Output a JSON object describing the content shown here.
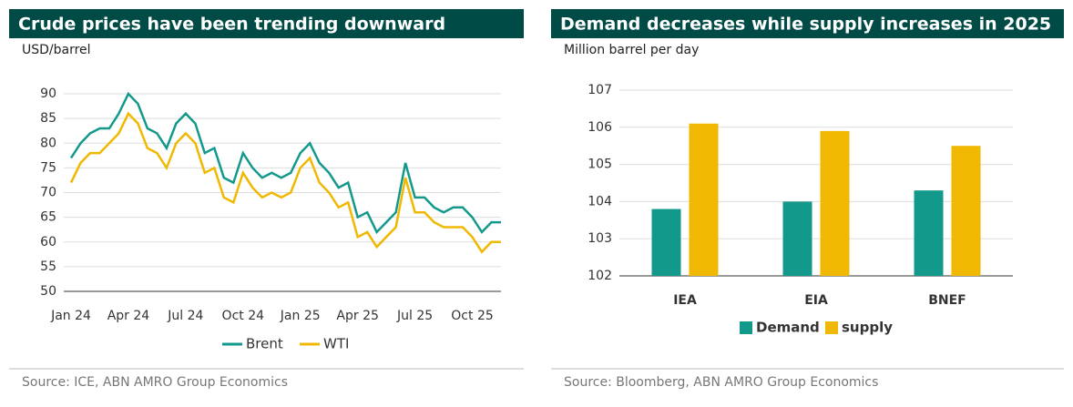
{
  "chart_data": [
    {
      "type": "line",
      "title": "Crude prices have been trending downward",
      "y_label": "USD/barrel",
      "source": "Source: ICE, ABN AMRO Group Economics",
      "categories": [
        "Jan 24",
        null,
        null,
        null,
        null,
        null,
        "Apr 24",
        null,
        null,
        null,
        null,
        null,
        "Jul 24",
        null,
        null,
        null,
        null,
        null,
        "Oct 24",
        null,
        null,
        null,
        null,
        null,
        "Jan 25",
        null,
        null,
        null,
        null,
        null,
        "Apr 25",
        null,
        null,
        null,
        null,
        null,
        "Jul 25",
        null,
        null,
        null,
        null,
        null,
        "Oct 25",
        null,
        null,
        null
      ],
      "series": [
        {
          "name": "Brent",
          "color": "#13998c",
          "values": [
            77,
            80,
            82,
            83,
            83,
            86,
            90,
            88,
            83,
            82,
            79,
            84,
            86,
            84,
            78,
            79,
            73,
            72,
            78,
            75,
            73,
            74,
            73,
            74,
            78,
            80,
            76,
            74,
            71,
            72,
            65,
            66,
            62,
            64,
            66,
            76,
            69,
            69,
            67,
            66,
            67,
            67,
            65,
            62,
            64,
            64
          ]
        },
        {
          "name": "WTI",
          "color": "#f0b800",
          "values": [
            72,
            76,
            78,
            78,
            80,
            82,
            86,
            84,
            79,
            78,
            75,
            80,
            82,
            80,
            74,
            75,
            69,
            68,
            74,
            71,
            69,
            70,
            69,
            70,
            75,
            77,
            72,
            70,
            67,
            68,
            61,
            62,
            59,
            61,
            63,
            73,
            66,
            66,
            64,
            63,
            63,
            63,
            61,
            58,
            60,
            60
          ]
        }
      ],
      "ylim": [
        50,
        90
      ],
      "yticks": [
        50,
        55,
        60,
        65,
        70,
        75,
        80,
        85,
        90
      ],
      "grid": true,
      "legend": "bottom"
    },
    {
      "type": "bar",
      "title": "Demand decreases while supply increases in 2025",
      "y_label": "Million barrel per day",
      "source": "Source: Bloomberg, ABN AMRO Group Economics",
      "categories": [
        "IEA",
        "EIA",
        "BNEF"
      ],
      "series": [
        {
          "name": "Demand",
          "color": "#13998c",
          "values": [
            103.8,
            104.0,
            104.3
          ]
        },
        {
          "name": "supply",
          "color": "#f0b800",
          "values": [
            106.1,
            105.9,
            105.5
          ]
        }
      ],
      "ylim": [
        102,
        107
      ],
      "yticks": [
        102,
        103,
        104,
        105,
        106,
        107
      ],
      "grid": true,
      "legend": "bottom"
    }
  ]
}
